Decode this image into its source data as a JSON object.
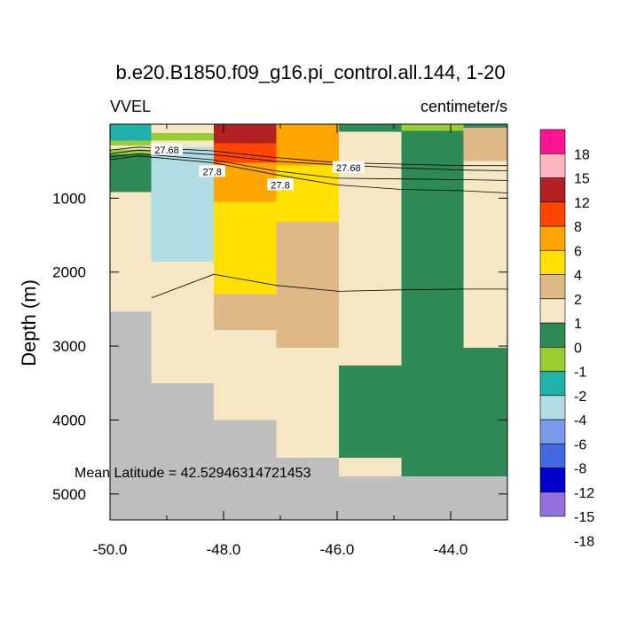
{
  "chart_data": {
    "type": "heatmap",
    "title": "b.e20.B1850.f09_g16.pi_control.all.144, 1-20",
    "subtitle_left": "VVEL",
    "subtitle_right": "centimeter/s",
    "ylabel": "Depth (m)",
    "annotation": "Mean Latitude = 42.52946314721453",
    "xlim": [
      -50.0,
      -43.0
    ],
    "ylim": [
      5350,
      0
    ],
    "x_ticks": [
      -50.0,
      -48.0,
      -46.0,
      -44.0
    ],
    "x_tick_labels": [
      "-50.0",
      "-48.0",
      "-46.0",
      "-44.0"
    ],
    "y_ticks": [
      1000,
      2000,
      3000,
      4000,
      5000
    ],
    "y_tick_labels": [
      "1000",
      "2000",
      "3000",
      "4000",
      "5000"
    ],
    "colorbar": {
      "labels": [
        "18",
        "15",
        "12",
        "8",
        "6",
        "4",
        "2",
        "1",
        "0",
        "-1",
        "-2",
        "-4",
        "-6",
        "-8",
        "-12",
        "-15",
        "-18"
      ],
      "colors": [
        "#9370db",
        "#0000cd",
        "#4169e1",
        "#7b9ae8",
        "#b0dde3",
        "#20b2aa",
        "#9acd32",
        "#2e8b57",
        "#f5e6c4",
        "#deb887",
        "#ffe000",
        "#ffa500",
        "#ff4500",
        "#b22222",
        "#ffb6c1",
        "#ff1493"
      ]
    },
    "cells": [
      {
        "x0": -50.0,
        "x1": -49.27,
        "y0": 0,
        "y1": 220,
        "color": "#20b2aa"
      },
      {
        "x0": -50.0,
        "x1": -49.27,
        "y0": 220,
        "y1": 290,
        "color": "#9acd32"
      },
      {
        "x0": -50.0,
        "x1": -49.27,
        "y0": 290,
        "y1": 340,
        "color": "#f5e6c4"
      },
      {
        "x0": -50.0,
        "x1": -49.27,
        "y0": 340,
        "y1": 410,
        "color": "#9acd32"
      },
      {
        "x0": -50.0,
        "x1": -49.27,
        "y0": 410,
        "y1": 920,
        "color": "#2e8b57"
      },
      {
        "x0": -50.0,
        "x1": -49.27,
        "y0": 920,
        "y1": 2540,
        "color": "#f5e6c4"
      },
      {
        "x0": -49.27,
        "x1": -48.17,
        "y0": 0,
        "y1": 120,
        "color": "#f5e6c4"
      },
      {
        "x0": -49.27,
        "x1": -48.17,
        "y0": 120,
        "y1": 220,
        "color": "#9acd32"
      },
      {
        "x0": -49.27,
        "x1": -48.17,
        "y0": 220,
        "y1": 310,
        "color": "#f5e6c4"
      },
      {
        "x0": -49.27,
        "x1": -48.17,
        "y0": 310,
        "y1": 1860,
        "color": "#b0dde3"
      },
      {
        "x0": -49.27,
        "x1": -48.17,
        "y0": 1860,
        "y1": 3500,
        "color": "#f5e6c4"
      },
      {
        "x0": -48.17,
        "x1": -47.07,
        "y0": 0,
        "y1": 260,
        "color": "#b22222"
      },
      {
        "x0": -48.17,
        "x1": -47.07,
        "y0": 260,
        "y1": 520,
        "color": "#ff4500"
      },
      {
        "x0": -48.17,
        "x1": -47.07,
        "y0": 520,
        "y1": 1050,
        "color": "#ffa500"
      },
      {
        "x0": -48.17,
        "x1": -47.07,
        "y0": 1050,
        "y1": 2300,
        "color": "#ffe000"
      },
      {
        "x0": -48.17,
        "x1": -47.07,
        "y0": 2300,
        "y1": 2780,
        "color": "#deb887"
      },
      {
        "x0": -48.17,
        "x1": -47.07,
        "y0": 2780,
        "y1": 4000,
        "color": "#f5e6c4"
      },
      {
        "x0": -47.07,
        "x1": -45.97,
        "y0": 0,
        "y1": 560,
        "color": "#ffa500"
      },
      {
        "x0": -47.07,
        "x1": -45.97,
        "y0": 560,
        "y1": 1320,
        "color": "#ffe000"
      },
      {
        "x0": -47.07,
        "x1": -45.97,
        "y0": 1320,
        "y1": 3020,
        "color": "#deb887"
      },
      {
        "x0": -47.07,
        "x1": -45.97,
        "y0": 3020,
        "y1": 4510,
        "color": "#f5e6c4"
      },
      {
        "x0": -45.97,
        "x1": -44.87,
        "y0": 0,
        "y1": 100,
        "color": "#2e8b57"
      },
      {
        "x0": -45.97,
        "x1": -44.87,
        "y0": 100,
        "y1": 3260,
        "color": "#f5e6c4"
      },
      {
        "x0": -45.97,
        "x1": -44.87,
        "y0": 3260,
        "y1": 4510,
        "color": "#2e8b57"
      },
      {
        "x0": -45.97,
        "x1": -44.87,
        "y0": 4510,
        "y1": 4760,
        "color": "#f5e6c4"
      },
      {
        "x0": -44.87,
        "x1": -43.77,
        "y0": 0,
        "y1": 90,
        "color": "#9acd32"
      },
      {
        "x0": -44.87,
        "x1": -43.77,
        "y0": 90,
        "y1": 4760,
        "color": "#2e8b57"
      },
      {
        "x0": -43.77,
        "x1": -43.0,
        "y0": 0,
        "y1": 50,
        "color": "#2e8b57"
      },
      {
        "x0": -43.77,
        "x1": -43.0,
        "y0": 50,
        "y1": 500,
        "color": "#deb887"
      },
      {
        "x0": -43.77,
        "x1": -43.0,
        "y0": 500,
        "y1": 3020,
        "color": "#f5e6c4"
      },
      {
        "x0": -43.77,
        "x1": -43.0,
        "y0": 3020,
        "y1": 4760,
        "color": "#2e8b57"
      }
    ],
    "land_color": "#bebebe",
    "land_mask": [
      {
        "x0": -50.0,
        "x1": -49.27,
        "y0": 2540,
        "y1": 5350
      },
      {
        "x0": -49.27,
        "x1": -48.17,
        "y0": 3500,
        "y1": 5350
      },
      {
        "x0": -48.17,
        "x1": -47.07,
        "y0": 4000,
        "y1": 5350
      },
      {
        "x0": -47.07,
        "x1": -45.97,
        "y0": 4510,
        "y1": 5350
      },
      {
        "x0": -45.97,
        "x1": -43.0,
        "y0": 4760,
        "y1": 5350
      }
    ],
    "contours": [
      {
        "value": 27.68,
        "points": [
          [
            -50.0,
            400
          ],
          [
            -49.5,
            350
          ],
          [
            -48.2,
            410
          ],
          [
            -47.1,
            500
          ],
          [
            -46.0,
            550
          ],
          [
            -44.9,
            590
          ],
          [
            -43.8,
            620
          ],
          [
            -43.0,
            630
          ]
        ]
      },
      {
        "value": 27.68,
        "points": [
          [
            -50.0,
            350
          ],
          [
            -49.5,
            310
          ],
          [
            -48.2,
            360
          ],
          [
            -47.1,
            450
          ],
          [
            -46.0,
            520
          ],
          [
            -44.9,
            540
          ],
          [
            -43.8,
            560
          ],
          [
            -43.0,
            560
          ]
        ]
      },
      {
        "value": 27.8,
        "points": [
          [
            -50.0,
            480
          ],
          [
            -49.5,
            430
          ],
          [
            -48.2,
            520
          ],
          [
            -47.1,
            680
          ],
          [
            -46.0,
            820
          ],
          [
            -44.9,
            880
          ],
          [
            -43.8,
            900
          ],
          [
            -43.0,
            930
          ]
        ]
      },
      {
        "value": 27.8,
        "points": [
          [
            -50.0,
            440
          ],
          [
            -49.5,
            400
          ],
          [
            -48.2,
            480
          ],
          [
            -47.1,
            630
          ],
          [
            -46.0,
            730
          ],
          [
            -44.9,
            740
          ],
          [
            -43.8,
            750
          ],
          [
            -43.0,
            760
          ]
        ]
      },
      {
        "value": 0,
        "points": [
          [
            -49.27,
            2350
          ],
          [
            -48.17,
            2030
          ],
          [
            -47.07,
            2180
          ],
          [
            -45.97,
            2260
          ],
          [
            -44.87,
            2240
          ],
          [
            -43.77,
            2230
          ],
          [
            -43.0,
            2230
          ]
        ]
      }
    ],
    "contour_labels": [
      {
        "text": "27.68",
        "x": -49.0,
        "y": 345
      },
      {
        "text": "27.8",
        "x": -48.2,
        "y": 640
      },
      {
        "text": "27.8",
        "x": -47.0,
        "y": 820
      },
      {
        "text": "27.68",
        "x": -45.8,
        "y": 585
      }
    ]
  }
}
